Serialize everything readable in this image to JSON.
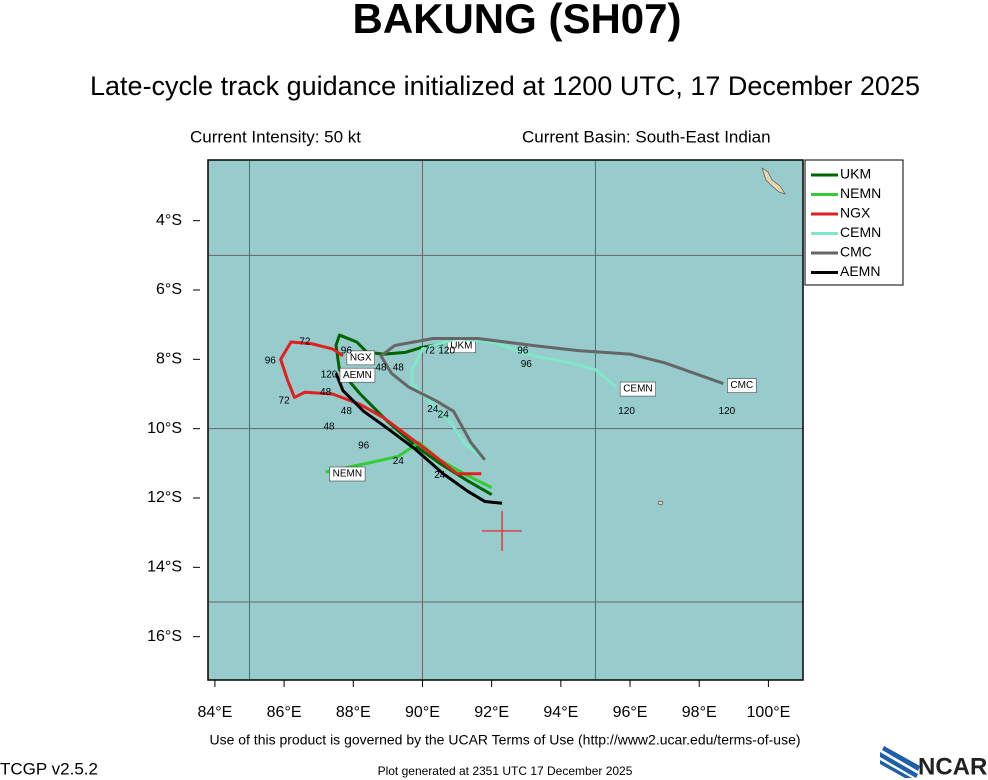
{
  "chart_data": {
    "type": "line",
    "title": "BAKUNG (SH07)",
    "subtitle": "Late-cycle track guidance initialized at 1200 UTC, 17 December 2025",
    "intensity_label": "Current Intensity: 50 kt",
    "basin_label": "Current Basin: South-East Indian",
    "footer": "Use of this product is governed by the UCAR Terms of Use (http://www2.ucar.edu/terms-of-use)",
    "version": "TCGP v2.5.2",
    "generated": "Plot generated at 2351 UTC   17 December 2025",
    "logo": "NCAR",
    "xlim": [
      83.8,
      101
    ],
    "ylim": [
      -17.25,
      -2.25
    ],
    "xticks": [
      {
        "value": 84,
        "label": "84°E"
      },
      {
        "value": 86,
        "label": "86°E"
      },
      {
        "value": 88,
        "label": "88°E"
      },
      {
        "value": 90,
        "label": "90°E"
      },
      {
        "value": 92,
        "label": "92°E"
      },
      {
        "value": 94,
        "label": "94°E"
      },
      {
        "value": 96,
        "label": "96°E"
      },
      {
        "value": 98,
        "label": "98°E"
      },
      {
        "value": 100,
        "label": "100°E"
      }
    ],
    "yticks": [
      {
        "value": -4,
        "label": "4°S"
      },
      {
        "value": -6,
        "label": "6°S"
      },
      {
        "value": -8,
        "label": "8°S"
      },
      {
        "value": -10,
        "label": "10°S"
      },
      {
        "value": -12,
        "label": "12°S"
      },
      {
        "value": -14,
        "label": "14°S"
      },
      {
        "value": -16,
        "label": "16°S"
      }
    ],
    "grid_lon": [
      85,
      90,
      95
    ],
    "grid_lat": [
      -5,
      -10,
      -15
    ],
    "background": "#98cccc",
    "current_position": [
      92.3,
      -12.95
    ],
    "series": [
      {
        "name": "UKM",
        "color": "#006400",
        "x": [
          92.0,
          91.3,
          90.5,
          89.8,
          89.0,
          88.2,
          87.6,
          87.5,
          87.6,
          88.1,
          88.4,
          88.9,
          89.5,
          90.0,
          90.6
        ],
        "values": [
          -11.9,
          -11.5,
          -11.0,
          -10.5,
          -9.8,
          -9.0,
          -8.3,
          -7.6,
          -7.3,
          -7.5,
          -7.8,
          -7.85,
          -7.8,
          -7.65,
          -7.55
        ]
      },
      {
        "name": "NEMN",
        "color": "#33cc33",
        "x": [
          92.0,
          91.2,
          90.5,
          89.9,
          89.3,
          88.4,
          87.2
        ],
        "values": [
          -11.7,
          -11.3,
          -10.9,
          -10.4,
          -10.8,
          -11.0,
          -11.25
        ]
      },
      {
        "name": "NGX",
        "color": "#e02020",
        "x": [
          91.7,
          91.0,
          90.5,
          89.7,
          88.9,
          88.2,
          87.4,
          86.6,
          86.3,
          86.1,
          85.9,
          86.2,
          86.8,
          87.4,
          87.7
        ],
        "values": [
          -11.3,
          -11.3,
          -10.9,
          -10.3,
          -9.7,
          -9.3,
          -9.0,
          -8.95,
          -9.1,
          -8.6,
          -8.0,
          -7.5,
          -7.55,
          -7.7,
          -7.9
        ]
      },
      {
        "name": "CEMN",
        "color": "#7fe8c8",
        "x": [
          91.8,
          91.2,
          90.8,
          90.2,
          89.7,
          89.7,
          90.0,
          91.0,
          92.0,
          93.2,
          94.3,
          95.0,
          95.6
        ],
        "values": [
          -10.9,
          -10.4,
          -9.8,
          -9.2,
          -8.7,
          -8.3,
          -7.7,
          -7.4,
          -7.5,
          -7.9,
          -8.1,
          -8.3,
          -8.8
        ]
      },
      {
        "name": "CMC",
        "color": "#666666",
        "x": [
          91.8,
          91.4,
          90.9,
          90.4,
          89.6,
          89.1,
          88.8,
          89.2,
          90.3,
          91.6,
          93.2,
          94.5,
          96.0,
          97.0,
          98.7
        ],
        "values": [
          -10.9,
          -10.4,
          -9.5,
          -9.2,
          -8.8,
          -8.4,
          -7.9,
          -7.6,
          -7.4,
          -7.4,
          -7.6,
          -7.75,
          -7.85,
          -8.1,
          -8.7
        ]
      },
      {
        "name": "AEMN",
        "color": "#000000",
        "x": [
          92.3,
          91.8,
          91.3,
          90.6,
          89.8,
          89.0,
          88.3,
          87.7,
          87.5
        ],
        "values": [
          -12.15,
          -12.1,
          -11.8,
          -11.3,
          -10.6,
          -10.0,
          -9.5,
          -8.9,
          -8.4
        ]
      }
    ],
    "annotations": [
      {
        "x": 85.6,
        "y": -8.05,
        "text": "96"
      },
      {
        "x": 86.0,
        "y": -9.2,
        "text": "72"
      },
      {
        "x": 86.6,
        "y": -7.5,
        "text": "72"
      },
      {
        "x": 87.2,
        "y": -8.95,
        "text": "48"
      },
      {
        "x": 87.3,
        "y": -9.95,
        "text": "48"
      },
      {
        "x": 87.8,
        "y": -9.5,
        "text": "48"
      },
      {
        "x": 88.3,
        "y": -10.5,
        "text": "96"
      },
      {
        "x": 89.3,
        "y": -10.95,
        "text": "24"
      },
      {
        "x": 90.5,
        "y": -11.35,
        "text": "24"
      },
      {
        "x": 90.3,
        "y": -9.45,
        "text": "24"
      },
      {
        "x": 90.6,
        "y": -9.6,
        "text": "24"
      },
      {
        "x": 88.8,
        "y": -8.25,
        "text": "48"
      },
      {
        "x": 89.3,
        "y": -8.25,
        "text": "48"
      },
      {
        "x": 92.9,
        "y": -7.75,
        "text": "96"
      },
      {
        "x": 93.0,
        "y": -8.15,
        "text": "96"
      },
      {
        "x": 90.2,
        "y": -7.75,
        "text": "72"
      },
      {
        "x": 90.7,
        "y": -7.75,
        "text": "120"
      },
      {
        "x": 95.9,
        "y": -9.5,
        "text": "120"
      },
      {
        "x": 98.8,
        "y": -9.5,
        "text": "120"
      },
      {
        "x": 87.8,
        "y": -7.75,
        "text": "96"
      },
      {
        "x": 87.3,
        "y": -8.45,
        "text": "120"
      }
    ]
  }
}
